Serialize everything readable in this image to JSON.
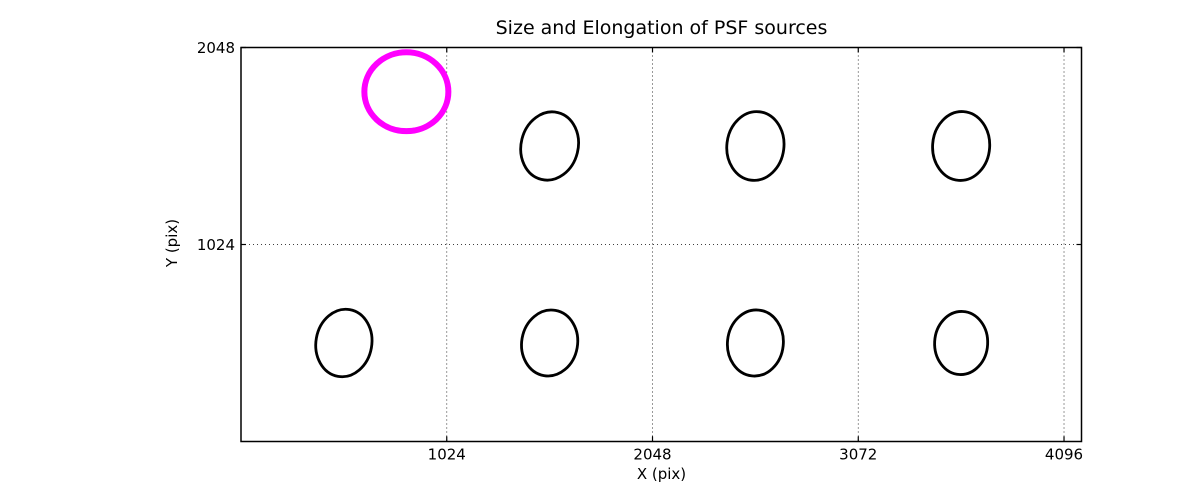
{
  "window": {
    "background": "#ffffff"
  },
  "chart_data": {
    "type": "scatter",
    "title": "Size and Elongation of PSF sources",
    "xlabel": "X (pix)",
    "ylabel": "Y (pix)",
    "xlim": [
      0,
      4183
    ],
    "ylim": [
      0,
      2048
    ],
    "xticks": [
      1024,
      2048,
      3072,
      4096
    ],
    "yticks": [
      1024,
      2048
    ],
    "grid": {
      "visible": true,
      "style": "dotted",
      "x_values": [
        1024,
        2048,
        3072,
        4096
      ],
      "y_values": [
        1024
      ]
    },
    "colors": {
      "axis": "#000000",
      "grid": "#000000",
      "psf_stroke": "#000000",
      "highlight_stroke": "#ff00ff"
    },
    "line_widths": {
      "psf": 2.8,
      "highlight": 6,
      "spine": 1.5,
      "grid": 0.8
    },
    "sources": [
      {
        "x": 512,
        "y": 512,
        "rx": 139,
        "ry": 176,
        "tilt_deg": 10,
        "type": "psf"
      },
      {
        "x": 1536,
        "y": 512,
        "rx": 139,
        "ry": 172,
        "tilt_deg": 10,
        "type": "psf"
      },
      {
        "x": 2560,
        "y": 512,
        "rx": 139,
        "ry": 172,
        "tilt_deg": 6,
        "type": "psf"
      },
      {
        "x": 3584,
        "y": 512,
        "rx": 132,
        "ry": 164,
        "tilt_deg": 3,
        "type": "psf"
      },
      {
        "x": 1536,
        "y": 1536,
        "rx": 142,
        "ry": 179,
        "tilt_deg": 14,
        "type": "psf"
      },
      {
        "x": 2560,
        "y": 1536,
        "rx": 142,
        "ry": 179,
        "tilt_deg": 7,
        "type": "psf"
      },
      {
        "x": 3584,
        "y": 1536,
        "rx": 142,
        "ry": 179,
        "tilt_deg": 4,
        "type": "psf"
      },
      {
        "x": 823,
        "y": 1818,
        "rx": 209,
        "ry": 205,
        "tilt_deg": 0,
        "type": "highlight"
      }
    ]
  }
}
